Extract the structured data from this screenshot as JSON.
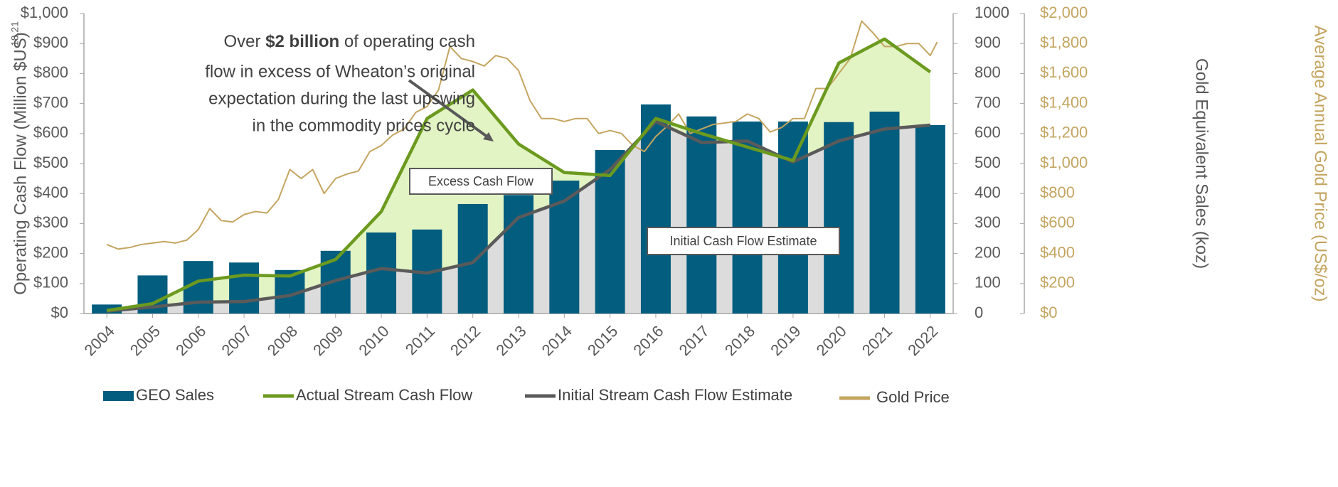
{
  "chart_data": {
    "type": "bar",
    "x": [
      2004,
      2005,
      2006,
      2007,
      2008,
      2009,
      2010,
      2011,
      2012,
      2013,
      2014,
      2015,
      2016,
      2017,
      2018,
      2019,
      2020,
      2021,
      2022
    ],
    "xlim": [
      2003.5,
      2022.5
    ],
    "xticks": [
      2004,
      2005,
      2006,
      2007,
      2008,
      2009,
      2010,
      2011,
      2012,
      2013,
      2014,
      2015,
      2016,
      2017,
      2018,
      2019,
      2020,
      2021,
      2022
    ],
    "ylabel": "Operating Cash Flow  (Million $US)",
    "ylabel_sup": "18,21",
    "ylim": [
      0,
      1000
    ],
    "yticks": [
      {
        "value": 0,
        "label": "$0"
      },
      {
        "value": 100,
        "label": "$100"
      },
      {
        "value": 200,
        "label": "$200"
      },
      {
        "value": 300,
        "label": "$300"
      },
      {
        "value": 400,
        "label": "$400"
      },
      {
        "value": 500,
        "label": "$500"
      },
      {
        "value": 600,
        "label": "$600"
      },
      {
        "value": 700,
        "label": "$700"
      },
      {
        "value": 800,
        "label": "$800"
      },
      {
        "value": 900,
        "label": "$900"
      },
      {
        "value": 1000,
        "label": "$1,000"
      }
    ],
    "y2label": "Gold Equivalent Sales (koz)",
    "y2lim": [
      0,
      1000
    ],
    "y2ticks": [
      0,
      100,
      200,
      300,
      400,
      500,
      600,
      700,
      800,
      900,
      1000
    ],
    "y3label": "Average Annual Gold Price (US$/oz)",
    "y3lim": [
      0,
      2000
    ],
    "y3ticks": [
      {
        "value": 0,
        "label": "$0"
      },
      {
        "value": 200,
        "label": "$200"
      },
      {
        "value": 400,
        "label": "$400"
      },
      {
        "value": 600,
        "label": "$600"
      },
      {
        "value": 800,
        "label": "$800"
      },
      {
        "value": 1000,
        "label": "$1,000"
      },
      {
        "value": 1200,
        "label": "$1,200"
      },
      {
        "value": 1400,
        "label": "$1,400"
      },
      {
        "value": 1600,
        "label": "$1,600"
      },
      {
        "value": 1800,
        "label": "$1,800"
      },
      {
        "value": 2000,
        "label": "$2,000"
      }
    ],
    "annotation": {
      "pre": "Over",
      "bold": "$2 billion",
      "post": "of operating cash",
      "lines": [
        "flow in excess of Wheaton’s original",
        "expectation during the last upswing",
        "in the commodity prices cycle"
      ]
    },
    "area_labels": [
      "Excess Cash Flow",
      "Initial Cash Flow Estimate"
    ],
    "fill_colors": [
      "#e2f3c4",
      "#dcdcdc"
    ],
    "series": [
      {
        "name": "GEO Sales",
        "type": "bar",
        "axis": "y2",
        "color": "#035d7e",
        "values": [
          30,
          127,
          175,
          170,
          145,
          209,
          270,
          280,
          365,
          395,
          443,
          545,
          697,
          657,
          640,
          640,
          638,
          673,
          628
        ]
      },
      {
        "name": "Actual Stream Cash Flow",
        "type": "line",
        "color": "#6b9a1f",
        "values": [
          10,
          33,
          108,
          128,
          125,
          180,
          340,
          650,
          745,
          565,
          470,
          460,
          650,
          600,
          555,
          510,
          835,
          915,
          805
        ]
      },
      {
        "name": "Initial Stream Cash Flow Estimate",
        "type": "line",
        "color": "#5a5a5a",
        "values": [
          8,
          22,
          38,
          40,
          60,
          110,
          150,
          135,
          170,
          320,
          375,
          480,
          640,
          570,
          575,
          505,
          575,
          615,
          628
        ]
      },
      {
        "name": "Gold Price",
        "type": "line",
        "axis": "y3",
        "color": "#c4a560",
        "x": [
          2004,
          2004.25,
          2004.5,
          2004.75,
          2005,
          2005.25,
          2005.5,
          2005.75,
          2006,
          2006.25,
          2006.5,
          2006.75,
          2007,
          2007.25,
          2007.5,
          2007.75,
          2008,
          2008.25,
          2008.5,
          2008.75,
          2009,
          2009.25,
          2009.5,
          2009.75,
          2010,
          2010.25,
          2010.5,
          2010.75,
          2011,
          2011.25,
          2011.5,
          2011.75,
          2012,
          2012.25,
          2012.5,
          2012.75,
          2013,
          2013.25,
          2013.5,
          2013.75,
          2014,
          2014.25,
          2014.5,
          2014.75,
          2015,
          2015.25,
          2015.5,
          2015.75,
          2016,
          2016.25,
          2016.5,
          2016.75,
          2017,
          2017.25,
          2017.5,
          2017.75,
          2018,
          2018.25,
          2018.5,
          2018.75,
          2019,
          2019.25,
          2019.5,
          2019.75,
          2020,
          2020.25,
          2020.5,
          2020.75,
          2021,
          2021.25,
          2021.5,
          2021.75,
          2022,
          2022.15
        ],
        "values": [
          460,
          430,
          440,
          460,
          470,
          480,
          470,
          490,
          560,
          700,
          620,
          610,
          660,
          680,
          670,
          760,
          960,
          900,
          960,
          800,
          900,
          930,
          950,
          1080,
          1120,
          1190,
          1230,
          1340,
          1380,
          1490,
          1780,
          1700,
          1680,
          1650,
          1720,
          1700,
          1620,
          1420,
          1300,
          1300,
          1280,
          1300,
          1300,
          1200,
          1220,
          1200,
          1120,
          1080,
          1180,
          1250,
          1330,
          1200,
          1230,
          1260,
          1270,
          1280,
          1330,
          1300,
          1210,
          1240,
          1300,
          1300,
          1500,
          1500,
          1600,
          1700,
          1950,
          1870,
          1780,
          1780,
          1800,
          1800,
          1720,
          1810
        ]
      }
    ]
  }
}
